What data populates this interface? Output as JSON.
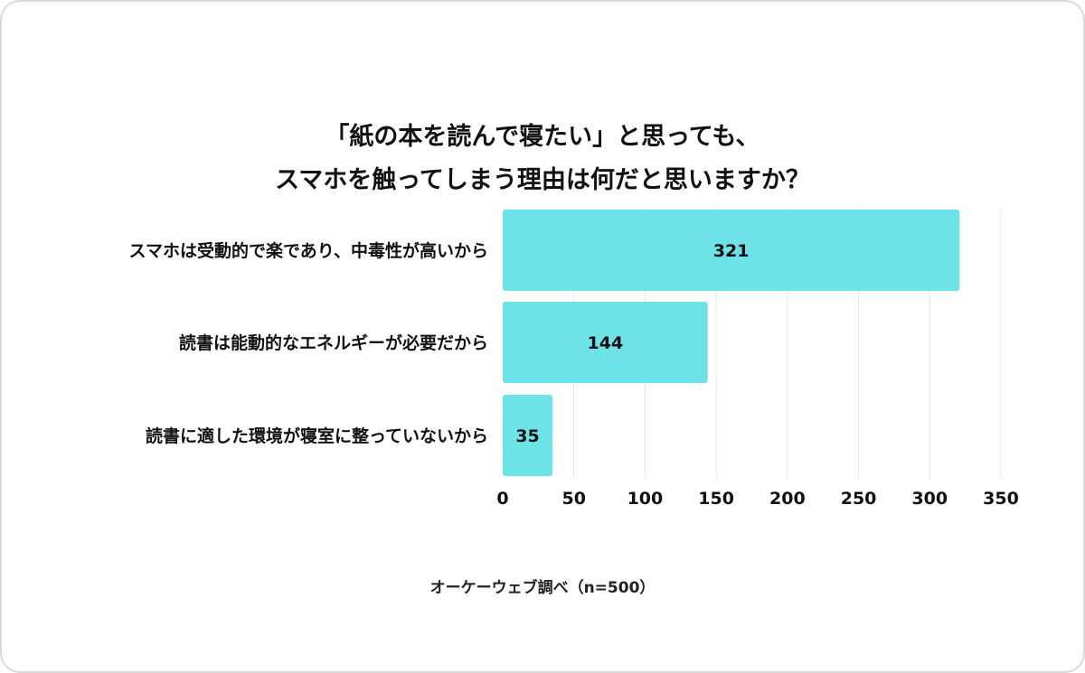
{
  "title_lines": [
    "「紙の本を読んで寝たい」と思っても、",
    "スマホを触ってしまう理由は何だと思いますか？"
  ],
  "source_note": "オーケーウェブ調べ（n=500）",
  "chart_data": {
    "type": "bar",
    "orientation": "horizontal",
    "categories": [
      "スマホは受動的で楽であり、中毒性が高いから",
      "読書は能動的なエネルギーが必要だから",
      "読書に適した環境が寝室に整っていないから"
    ],
    "values": [
      321,
      144,
      35
    ],
    "xlim": [
      0,
      350
    ],
    "xticks": [
      0,
      50,
      100,
      150,
      200,
      250,
      300,
      350
    ],
    "grid": true,
    "bar_color": "#6de3e8",
    "title": "「紙の本を読んで寝たい」と思っても、スマホを触ってしまう理由は何だと思いますか？"
  }
}
